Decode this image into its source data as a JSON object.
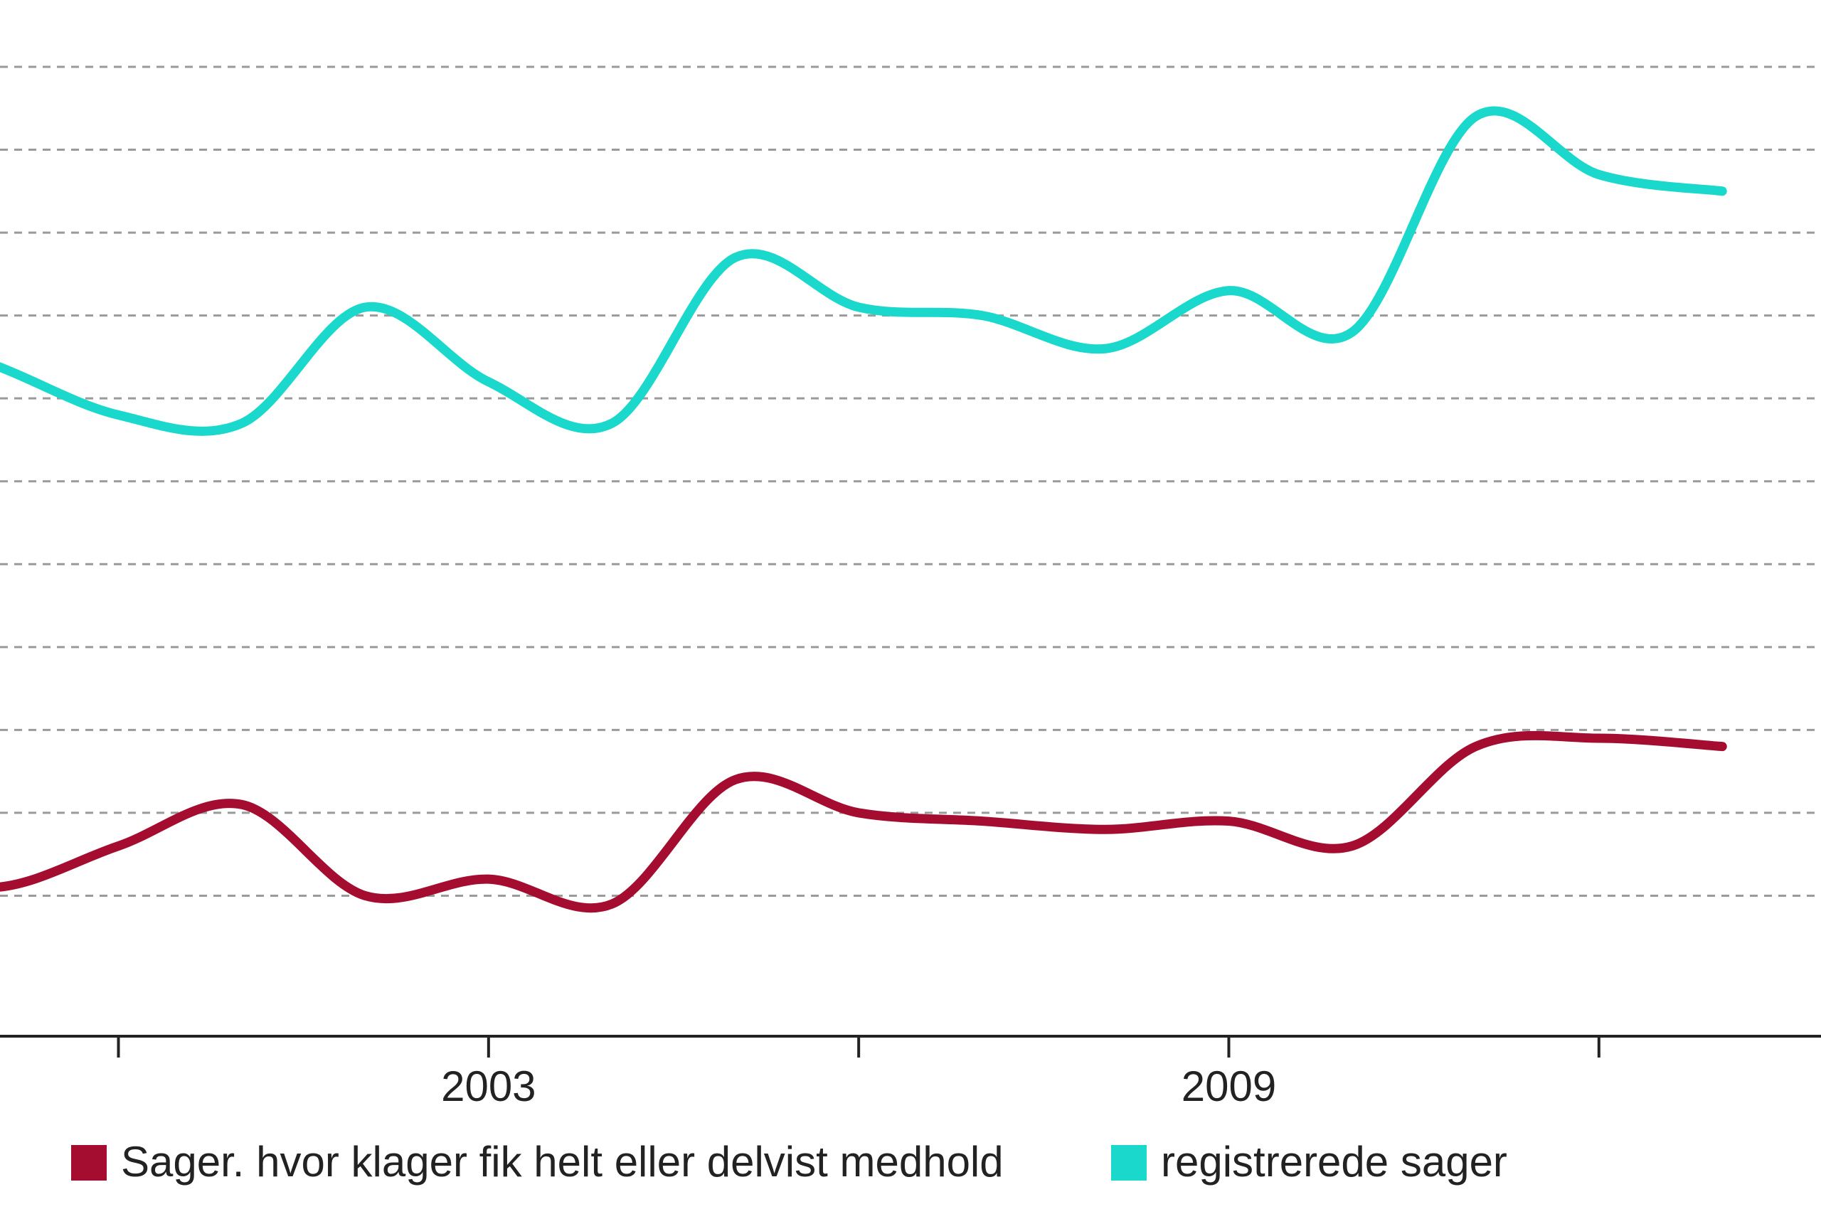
{
  "chart_data": {
    "type": "line",
    "title": "",
    "xlabel": "",
    "ylabel": "",
    "x": [
      1998,
      1999,
      2000,
      2001,
      2002,
      2003,
      2004,
      2005,
      2006,
      2007,
      2008,
      2009,
      2010,
      2011,
      2012,
      2013
    ],
    "x_tick_labels": [
      {
        "value": 2003,
        "label": "2003"
      },
      {
        "value": 2009,
        "label": "2009"
      }
    ],
    "x_ticks": [
      2000,
      2003,
      2006,
      2009,
      2012
    ],
    "xlim": [
      1999.04,
      2013.8
    ],
    "ylim": [
      0,
      110
    ],
    "gridlines": [
      10,
      20,
      30,
      40,
      50,
      60,
      70,
      80,
      90,
      100,
      110
    ],
    "grid": true,
    "legend_position": "bottom-left",
    "series": [
      {
        "name": "Sager. hvor klager fik helt eller delvist medhold",
        "color": "#a50d30",
        "values": [
          14,
          11,
          16,
          21,
          10,
          12,
          9,
          24,
          20,
          19,
          18,
          19,
          16,
          28,
          29,
          28
        ]
      },
      {
        "name": "registrerede sager",
        "color": "#1ad8cc",
        "values": [
          79,
          74,
          68,
          67,
          81,
          72,
          67,
          87,
          81,
          80,
          76,
          83,
          78,
          104,
          97,
          95
        ]
      }
    ]
  }
}
